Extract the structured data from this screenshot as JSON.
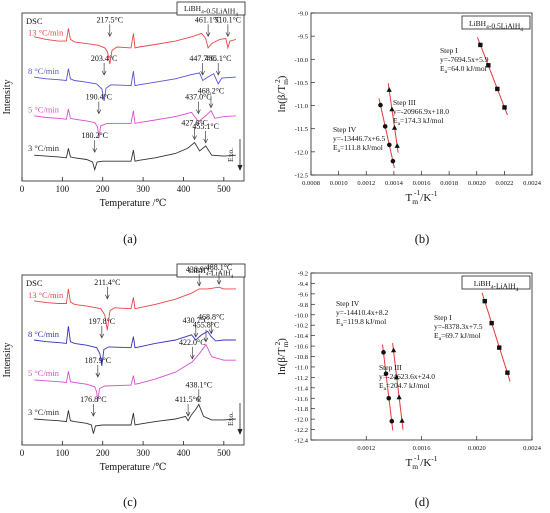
{
  "panels": {
    "a": {
      "caption": "(a)"
    },
    "b": {
      "caption": "(b)"
    },
    "c": {
      "caption": "(c)"
    },
    "d": {
      "caption": "(d)"
    }
  },
  "chart_data": [
    {
      "id": "a",
      "type": "line",
      "tag": "DSC",
      "legend_box": "LiBH4-0.5LiAlH4",
      "xlabel": "Temperature /℃",
      "ylabel": "Intensity",
      "xlim": [
        0,
        550
      ],
      "xticks": [
        "0",
        "100",
        "200",
        "300",
        "400",
        "500"
      ],
      "exo_label": "Exo.",
      "series": [
        {
          "name": "13 °C/min",
          "color": "#e8474a",
          "offset": 3.0,
          "x": [
            30,
            60,
            90,
            110,
            115,
            120,
            130,
            160,
            190,
            205,
            212,
            217.5,
            223,
            235,
            270,
            276,
            280,
            290,
            330,
            380,
            420,
            445,
            455,
            461.1,
            470,
            490,
            505,
            510.1,
            515,
            530
          ],
          "y": [
            0.08,
            0.05,
            0.03,
            0.03,
            0.18,
            0.05,
            0.02,
            0.0,
            -0.02,
            -0.05,
            -0.1,
            -0.24,
            -0.08,
            -0.04,
            -0.05,
            0.12,
            -0.05,
            -0.04,
            -0.01,
            0.03,
            0.08,
            0.12,
            0.06,
            -0.05,
            0.0,
            0.05,
            0.06,
            -0.05,
            0.03,
            0.05
          ]
        },
        {
          "name": "8 °C/min",
          "color": "#5555d6",
          "offset": 2.0,
          "x": [
            30,
            60,
            90,
            110,
            115,
            120,
            130,
            160,
            185,
            198,
            203.4,
            208,
            220,
            270,
            276,
            280,
            290,
            330,
            380,
            420,
            440,
            447.7,
            460,
            475,
            486.1,
            495,
            530
          ],
          "y": [
            0.06,
            0.04,
            0.03,
            0.02,
            0.16,
            0.04,
            0.02,
            0.0,
            -0.02,
            -0.08,
            -0.22,
            -0.07,
            -0.03,
            -0.04,
            0.13,
            -0.04,
            -0.03,
            0.0,
            0.04,
            0.09,
            0.11,
            0.02,
            0.06,
            0.1,
            -0.02,
            0.05,
            0.06
          ]
        },
        {
          "name": "5 °C/min",
          "color": "#d94fd0",
          "offset": 1.0,
          "x": [
            30,
            60,
            90,
            110,
            115,
            120,
            130,
            160,
            180,
            187,
            190.4,
            195,
            210,
            270,
            276,
            280,
            290,
            330,
            380,
            420,
            437.0,
            450,
            460,
            468.2,
            478,
            500,
            530
          ],
          "y": [
            0.06,
            0.04,
            0.03,
            0.02,
            0.14,
            0.03,
            0.02,
            0.0,
            -0.02,
            -0.07,
            -0.2,
            -0.06,
            -0.03,
            -0.03,
            0.12,
            -0.03,
            -0.02,
            0.01,
            0.05,
            0.1,
            -0.01,
            0.04,
            0.08,
            0.12,
            0.03,
            0.05,
            0.06
          ]
        },
        {
          "name": "3 °C/min",
          "color": "#333333",
          "offset": 0.0,
          "x": [
            30,
            60,
            90,
            110,
            115,
            120,
            130,
            160,
            175,
            180.2,
            186,
            200,
            270,
            276,
            280,
            290,
            330,
            380,
            410,
            427.6,
            440,
            455.1,
            470,
            500,
            530
          ],
          "y": [
            0.05,
            0.04,
            0.03,
            0.02,
            0.13,
            0.03,
            0.02,
            0.0,
            -0.03,
            -0.12,
            -0.03,
            -0.02,
            -0.02,
            0.11,
            -0.02,
            -0.01,
            0.02,
            0.07,
            0.13,
            0.2,
            0.1,
            0.16,
            0.05,
            0.04,
            0.05
          ]
        }
      ],
      "annotations": [
        {
          "text": "217.5°C",
          "series": 0,
          "x": 217.5
        },
        {
          "text": "461.1°C",
          "series": 0,
          "x": 461.1
        },
        {
          "text": "510.1°C",
          "series": 0,
          "x": 510.1
        },
        {
          "text": "203.4°C",
          "series": 1,
          "x": 203.4
        },
        {
          "text": "447.7°C",
          "series": 1,
          "x": 447.7
        },
        {
          "text": "486.1°C",
          "series": 1,
          "x": 486.1
        },
        {
          "text": "190.4°C",
          "series": 2,
          "x": 190.4
        },
        {
          "text": "437.0°C",
          "series": 2,
          "x": 437.0
        },
        {
          "text": "468.2°C",
          "series": 2,
          "x": 468.2
        },
        {
          "text": "180.2°C",
          "series": 3,
          "x": 180.2
        },
        {
          "text": "427.6°C",
          "series": 3,
          "x": 427.6
        },
        {
          "text": "455.1°C",
          "series": 3,
          "x": 455.1
        }
      ]
    },
    {
      "id": "b",
      "type": "scatter",
      "legend_box": "LiBH4-0.5LiAlH4",
      "xlabel": "Tm-1/K-1",
      "ylabel": "ln(β/Tm2)",
      "xlim": [
        0.0008,
        0.0024
      ],
      "ylim": [
        -12.5,
        -9.0
      ],
      "xticks": [
        "0.0008",
        "0.0010",
        "0.0012",
        "0.0014",
        "0.0016",
        "0.0018",
        "0.0020",
        "0.0022",
        "0.0024"
      ],
      "yticks": [
        "-12.5",
        "-12.0",
        "-11.5",
        "-11.0",
        "-10.5",
        "-10.0",
        "-9.5",
        "-9.0"
      ],
      "series": [
        {
          "name": "Step I",
          "marker": "square",
          "x": [
            0.002026,
            0.002084,
            0.002149,
            0.002201
          ],
          "y": [
            -9.69,
            -10.13,
            -10.64,
            -11.04
          ],
          "label": "Step I",
          "eq": "y=-7694.5x+5.9",
          "ea": "Ea=64.0 kJ/mol"
        },
        {
          "name": "Step III",
          "marker": "triangle",
          "x": [
            0.001366,
            0.001386,
            0.001405,
            0.001424
          ],
          "y": [
            -10.66,
            -11.08,
            -11.48,
            -11.87
          ],
          "label": "Step III",
          "eq": "y=-20966.9x+18.0",
          "ea": "Ea=174.3 kJ/mol"
        },
        {
          "name": "Step IV",
          "marker": "circle",
          "x": [
            0.001303,
            0.001337,
            0.001367,
            0.001393
          ],
          "y": [
            -10.99,
            -11.45,
            -11.85,
            -12.2
          ],
          "label": "Step IV",
          "eq": "y=-13446.7x+6.5",
          "ea": "Ea=111.8 kJ/mol"
        }
      ]
    },
    {
      "id": "c",
      "type": "line",
      "tag": "DSC",
      "legend_box": "LiBH4-LiAlH4",
      "xlabel": "Temperature /℃",
      "ylabel": "Intensity",
      "xlim": [
        0,
        550
      ],
      "xticks": [
        "0",
        "100",
        "200",
        "300",
        "400",
        "500"
      ],
      "exo_label": "Exo.",
      "series": [
        {
          "name": "13 °C/min",
          "color": "#e8474a",
          "offset": 3.0,
          "x": [
            30,
            60,
            90,
            110,
            115,
            120,
            130,
            160,
            195,
            205,
            211.4,
            218,
            230,
            270,
            276,
            280,
            290,
            330,
            380,
            420,
            438.9,
            460,
            488.1,
            500,
            530
          ],
          "y": [
            0.06,
            0.04,
            0.03,
            0.03,
            0.2,
            0.05,
            0.02,
            0.0,
            -0.03,
            -0.1,
            -0.28,
            -0.05,
            -0.02,
            -0.03,
            0.1,
            -0.03,
            -0.02,
            0.02,
            0.08,
            0.15,
            0.2,
            0.2,
            0.22,
            0.2,
            0.2
          ]
        },
        {
          "name": "8 °C/min",
          "color": "#3333b8",
          "offset": 2.0,
          "x": [
            30,
            60,
            90,
            110,
            115,
            120,
            130,
            160,
            185,
            193,
            197.8,
            203,
            215,
            270,
            276,
            280,
            290,
            330,
            380,
            420,
            430.7,
            445,
            460,
            468.8,
            480,
            500,
            530
          ],
          "y": [
            0.06,
            0.04,
            0.03,
            0.02,
            0.22,
            0.04,
            0.02,
            0.0,
            -0.03,
            -0.1,
            -0.24,
            -0.05,
            -0.02,
            -0.03,
            0.1,
            -0.03,
            -0.02,
            0.02,
            0.06,
            0.12,
            0.06,
            0.12,
            0.16,
            0.1,
            0.05,
            0.06,
            0.06
          ]
        },
        {
          "name": "5 °C/min",
          "color": "#d94fd0",
          "offset": 1.0,
          "x": [
            30,
            60,
            90,
            110,
            115,
            120,
            130,
            160,
            180,
            185,
            187.9,
            192,
            205,
            270,
            276,
            280,
            290,
            330,
            380,
            422.0,
            440,
            455.8,
            470,
            500,
            530
          ],
          "y": [
            0.05,
            0.04,
            0.03,
            0.02,
            0.15,
            0.03,
            0.02,
            0.0,
            -0.03,
            -0.09,
            -0.2,
            -0.05,
            -0.02,
            -0.01,
            0.1,
            0.0,
            0.01,
            0.06,
            0.14,
            0.26,
            0.36,
            0.46,
            0.32,
            0.28,
            0.28
          ]
        },
        {
          "name": "3 °C/min",
          "color": "#333333",
          "offset": 0.0,
          "x": [
            30,
            60,
            90,
            110,
            115,
            120,
            130,
            160,
            172,
            176.8,
            182,
            200,
            270,
            276,
            280,
            290,
            330,
            380,
            405,
            411.5,
            420,
            430,
            438.1,
            450,
            470,
            500,
            530
          ],
          "y": [
            0.05,
            0.04,
            0.03,
            0.02,
            0.15,
            0.03,
            0.02,
            0.0,
            -0.02,
            -0.12,
            -0.03,
            -0.02,
            -0.02,
            0.12,
            -0.02,
            -0.01,
            0.02,
            0.05,
            0.08,
            0.03,
            0.1,
            0.16,
            0.22,
            0.08,
            0.04,
            0.04,
            0.05
          ]
        }
      ],
      "annotations": [
        {
          "text": "211.4°C",
          "series": 0,
          "x": 211.4
        },
        {
          "text": "438.9°C",
          "series": 0,
          "x": 438.9
        },
        {
          "text": "488.1°C",
          "series": 0,
          "x": 488.1
        },
        {
          "text": "197.8°C",
          "series": 1,
          "x": 197.8
        },
        {
          "text": "430.7°C",
          "series": 1,
          "x": 430.7
        },
        {
          "text": "468.8°C",
          "series": 1,
          "x": 468.8
        },
        {
          "text": "187.9°C",
          "series": 2,
          "x": 187.9
        },
        {
          "text": "422.0°C",
          "series": 2,
          "x": 422.0
        },
        {
          "text": "455.8°C",
          "series": 2,
          "x": 455.8
        },
        {
          "text": "176.8°C",
          "series": 3,
          "x": 176.8
        },
        {
          "text": "411.5°C",
          "series": 3,
          "x": 411.5
        },
        {
          "text": "438.1°C",
          "series": 3,
          "x": 438.1
        }
      ]
    },
    {
      "id": "d",
      "type": "scatter",
      "legend_box": "LiBH4-LiAlH4",
      "xlabel": "Tm-1/K-1",
      "ylabel": "ln(β/Tm2)",
      "xlim": [
        0.0008,
        0.0024
      ],
      "ylim": [
        -12.4,
        -9.2
      ],
      "xticks": [
        "0.0012",
        "0.0016",
        "0.0020",
        "0.0024"
      ],
      "yticks": [
        "-12.4",
        "-12.2",
        "-12.0",
        "-11.8",
        "-11.6",
        "-11.4",
        "-11.2",
        "-11.0",
        "-10.8",
        "-10.6",
        "-10.4",
        "-10.2",
        "-10.0",
        "-9.8",
        "-9.6",
        "-9.4",
        "-9.2"
      ],
      "series": [
        {
          "name": "Step I",
          "marker": "square",
          "x": [
            0.002058,
            0.002108,
            0.002163,
            0.002222
          ],
          "y": [
            -9.74,
            -10.16,
            -10.63,
            -11.11
          ],
          "label": "Step I",
          "eq": "y=-8378.3x+7.5",
          "ea": "Ea=69.7 kJ/mol"
        },
        {
          "name": "Step III",
          "marker": "triangle",
          "x": [
            0.001398,
            0.001419,
            0.001438,
            0.001459
          ],
          "y": [
            -10.68,
            -11.2,
            -11.58,
            -12.03
          ],
          "label": "Step III",
          "eq": "y=-24623.6x+24.0",
          "ea": "Ea=204.7 kJ/mol"
        },
        {
          "name": "Step IV",
          "marker": "circle",
          "x": [
            0.001325,
            0.001343,
            0.001363,
            0.001385
          ],
          "y": [
            -10.72,
            -11.13,
            -11.6,
            -12.04
          ],
          "label": "Step IV",
          "eq": "y=-14410.4x+8.2",
          "ea": "Ea=119.8 kJ/mol"
        }
      ]
    }
  ]
}
